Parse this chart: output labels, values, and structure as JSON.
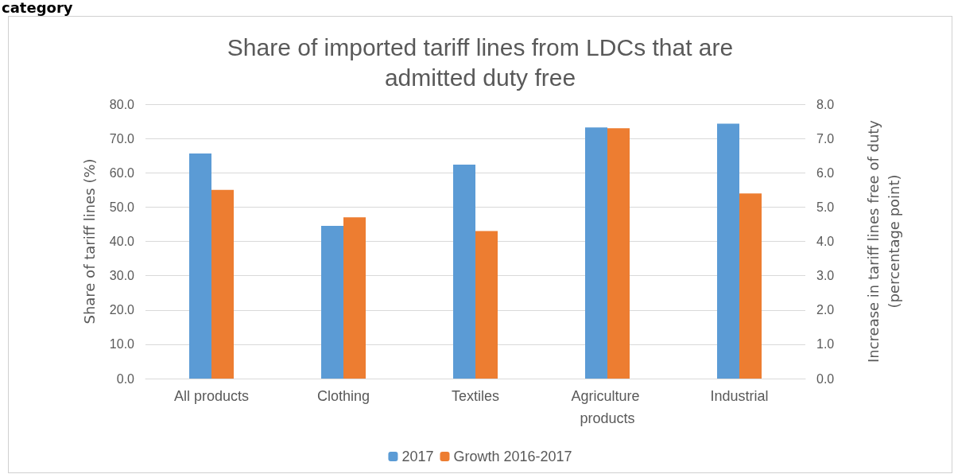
{
  "chart_data": {
    "type": "bar",
    "title": "Share of imported tariff lines from LDCs that are admitted duty free",
    "categories": [
      "All products",
      "Clothing",
      "Textiles",
      "Agriculture products",
      "Industrial"
    ],
    "series": [
      {
        "name": "2017",
        "color": "#5b9bd5",
        "values": [
          65.6,
          44.5,
          62.4,
          73.2,
          74.3
        ]
      },
      {
        "name": "Growth 2016-2017",
        "color": "#ed7d31",
        "axis": "y2",
        "values": [
          5.5,
          4.7,
          4.3,
          7.3,
          5.4
        ]
      }
    ],
    "ylabel": "Share of tariff lines (%)",
    "y2label": "Increase in tariff lines free of duty (percentage point)",
    "ylim": [
      0,
      80
    ],
    "yticks": [
      {
        "value": 0,
        "label": "0.0"
      },
      {
        "value": 10,
        "label": "10.0"
      },
      {
        "value": 20,
        "label": "20.0"
      },
      {
        "value": 30,
        "label": "30.0"
      },
      {
        "value": 40,
        "label": "40.0"
      },
      {
        "value": 50,
        "label": "50.0"
      },
      {
        "value": 60,
        "label": "60.0"
      },
      {
        "value": 70,
        "label": "70.0"
      },
      {
        "value": 80,
        "label": "80.0"
      }
    ],
    "y2lim": [
      0,
      8
    ],
    "y2ticks": [
      {
        "value": 0,
        "label": "0.0"
      },
      {
        "value": 1,
        "label": "1.0"
      },
      {
        "value": 2,
        "label": "2.0"
      },
      {
        "value": 3,
        "label": "3.0"
      },
      {
        "value": 4,
        "label": "4.0"
      },
      {
        "value": 5,
        "label": "5.0"
      },
      {
        "value": 6,
        "label": "6.0"
      },
      {
        "value": 7,
        "label": "7.0"
      },
      {
        "value": 8,
        "label": "8.0"
      }
    ],
    "annotations": [
      "category"
    ],
    "grid": "y",
    "legend": "bottom"
  }
}
